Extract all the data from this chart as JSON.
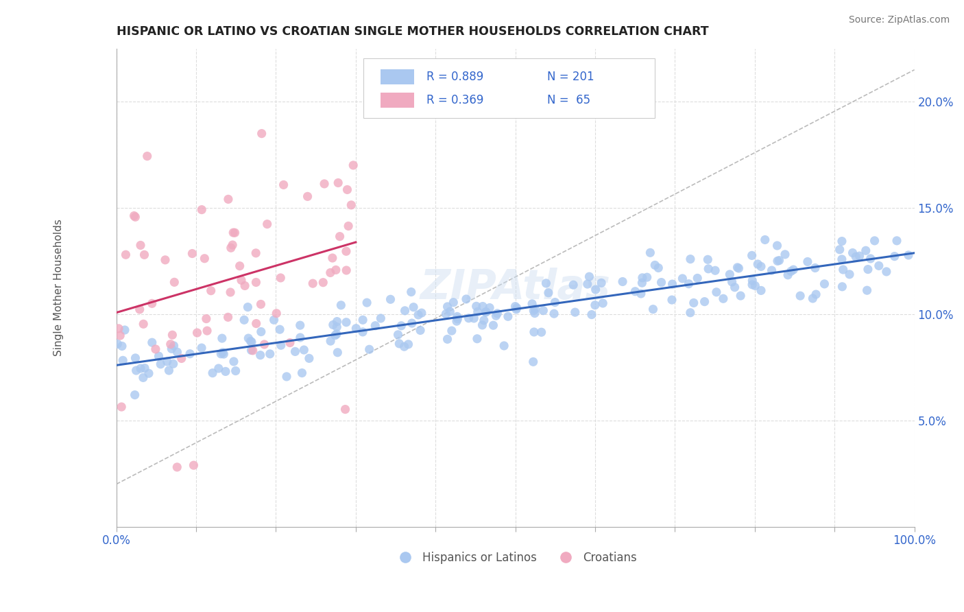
{
  "title": "HISPANIC OR LATINO VS CROATIAN SINGLE MOTHER HOUSEHOLDS CORRELATION CHART",
  "source": "Source: ZipAtlas.com",
  "ylabel": "Single Mother Households",
  "xlim": [
    0,
    1.0
  ],
  "ylim": [
    0.0,
    0.225
  ],
  "xticks": [
    0.0,
    0.1,
    0.2,
    0.3,
    0.4,
    0.5,
    0.6,
    0.7,
    0.8,
    0.9,
    1.0
  ],
  "xticklabels": [
    "0.0%",
    "",
    "",
    "",
    "",
    "",
    "",
    "",
    "",
    "",
    "100.0%"
  ],
  "ytick_positions": [
    0.05,
    0.1,
    0.15,
    0.2
  ],
  "ytick_labels": [
    "5.0%",
    "10.0%",
    "15.0%",
    "20.0%"
  ],
  "blue_color": "#aac8f0",
  "pink_color": "#f0aac0",
  "blue_line_color": "#3366bb",
  "pink_line_color": "#cc3366",
  "ref_line_color": "#bbbbbb",
  "watermark": "ZIPAtlas",
  "blue_r": 0.889,
  "blue_n": 201,
  "pink_r": 0.369,
  "pink_n": 65,
  "title_color": "#222222",
  "stat_color": "#3366cc",
  "tick_color": "#3366cc",
  "grid_color": "#dddddd",
  "legend_text_color": "#555555"
}
